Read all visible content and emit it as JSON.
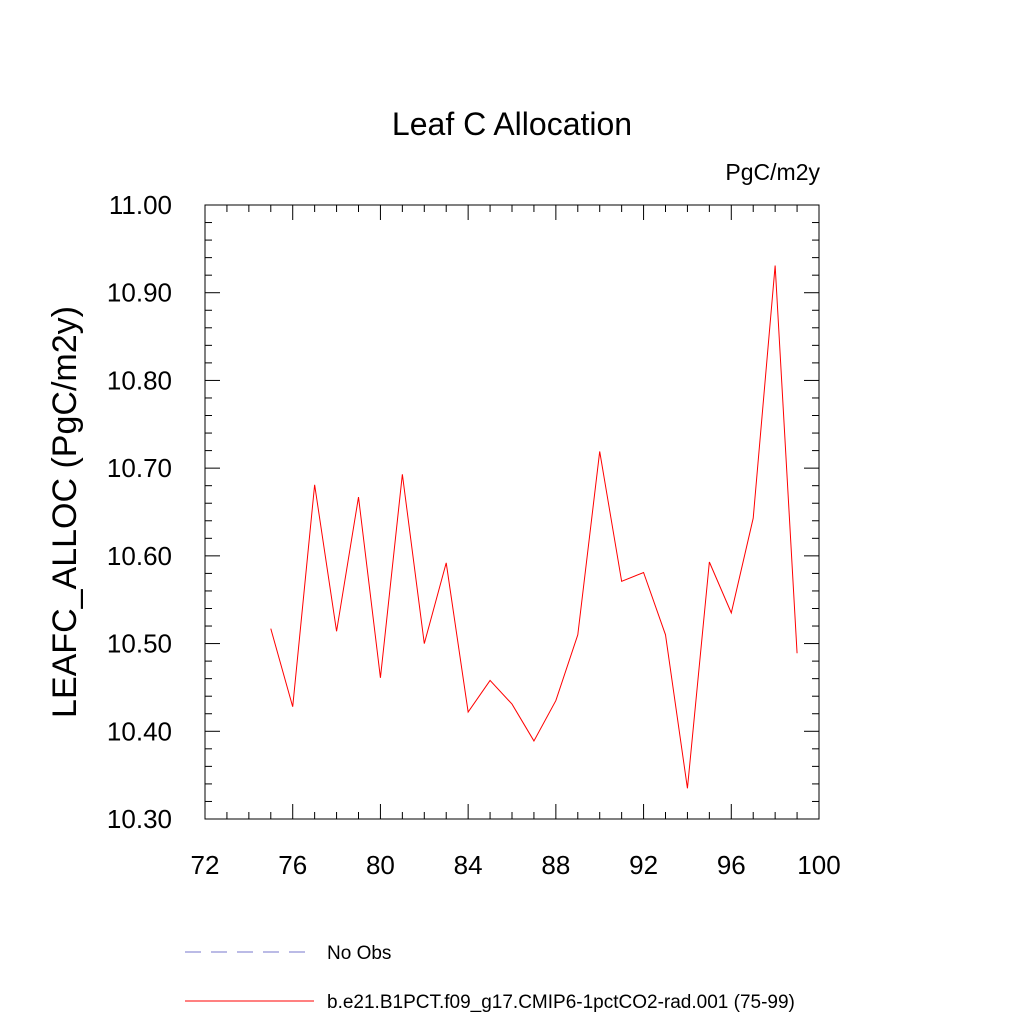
{
  "chart_data": {
    "type": "line",
    "title": "Leaf C Allocation",
    "units_label": "PgC/m2y",
    "ylabel": "LEAFC_ALLOC  (PgC/m2y)",
    "xlabel": "",
    "xlim": [
      72,
      100
    ],
    "ylim": [
      10.3,
      11.0
    ],
    "x_ticks": [
      "72",
      "76",
      "80",
      "84",
      "88",
      "92",
      "96",
      "100"
    ],
    "y_ticks": [
      "10.30",
      "10.40",
      "10.50",
      "10.60",
      "10.70",
      "10.80",
      "10.90",
      "11.00"
    ],
    "grid": false,
    "legend_position": "bottom",
    "series": [
      {
        "name": "b.e21.B1PCT.f09_g17.CMIP6-1pctCO2-rad.001 (75-99)",
        "color": "#ff0000",
        "style": "solid",
        "x": [
          75,
          76,
          77,
          78,
          79,
          80,
          81,
          82,
          83,
          84,
          85,
          86,
          87,
          88,
          89,
          90,
          91,
          92,
          93,
          94,
          95,
          96,
          97,
          98,
          99
        ],
        "y": [
          10.517,
          10.428,
          10.681,
          10.514,
          10.667,
          10.461,
          10.693,
          10.5,
          10.592,
          10.422,
          10.458,
          10.431,
          10.389,
          10.435,
          10.51,
          10.719,
          10.571,
          10.581,
          10.51,
          10.335,
          10.593,
          10.535,
          10.643,
          10.931,
          10.489
        ]
      }
    ],
    "legend": [
      {
        "label": "No Obs",
        "color": "#7777cc",
        "style": "dashed"
      },
      {
        "label": "b.e21.B1PCT.f09_g17.CMIP6-1pctCO2-rad.001 (75-99)",
        "color": "#ff0000",
        "style": "solid"
      }
    ]
  }
}
